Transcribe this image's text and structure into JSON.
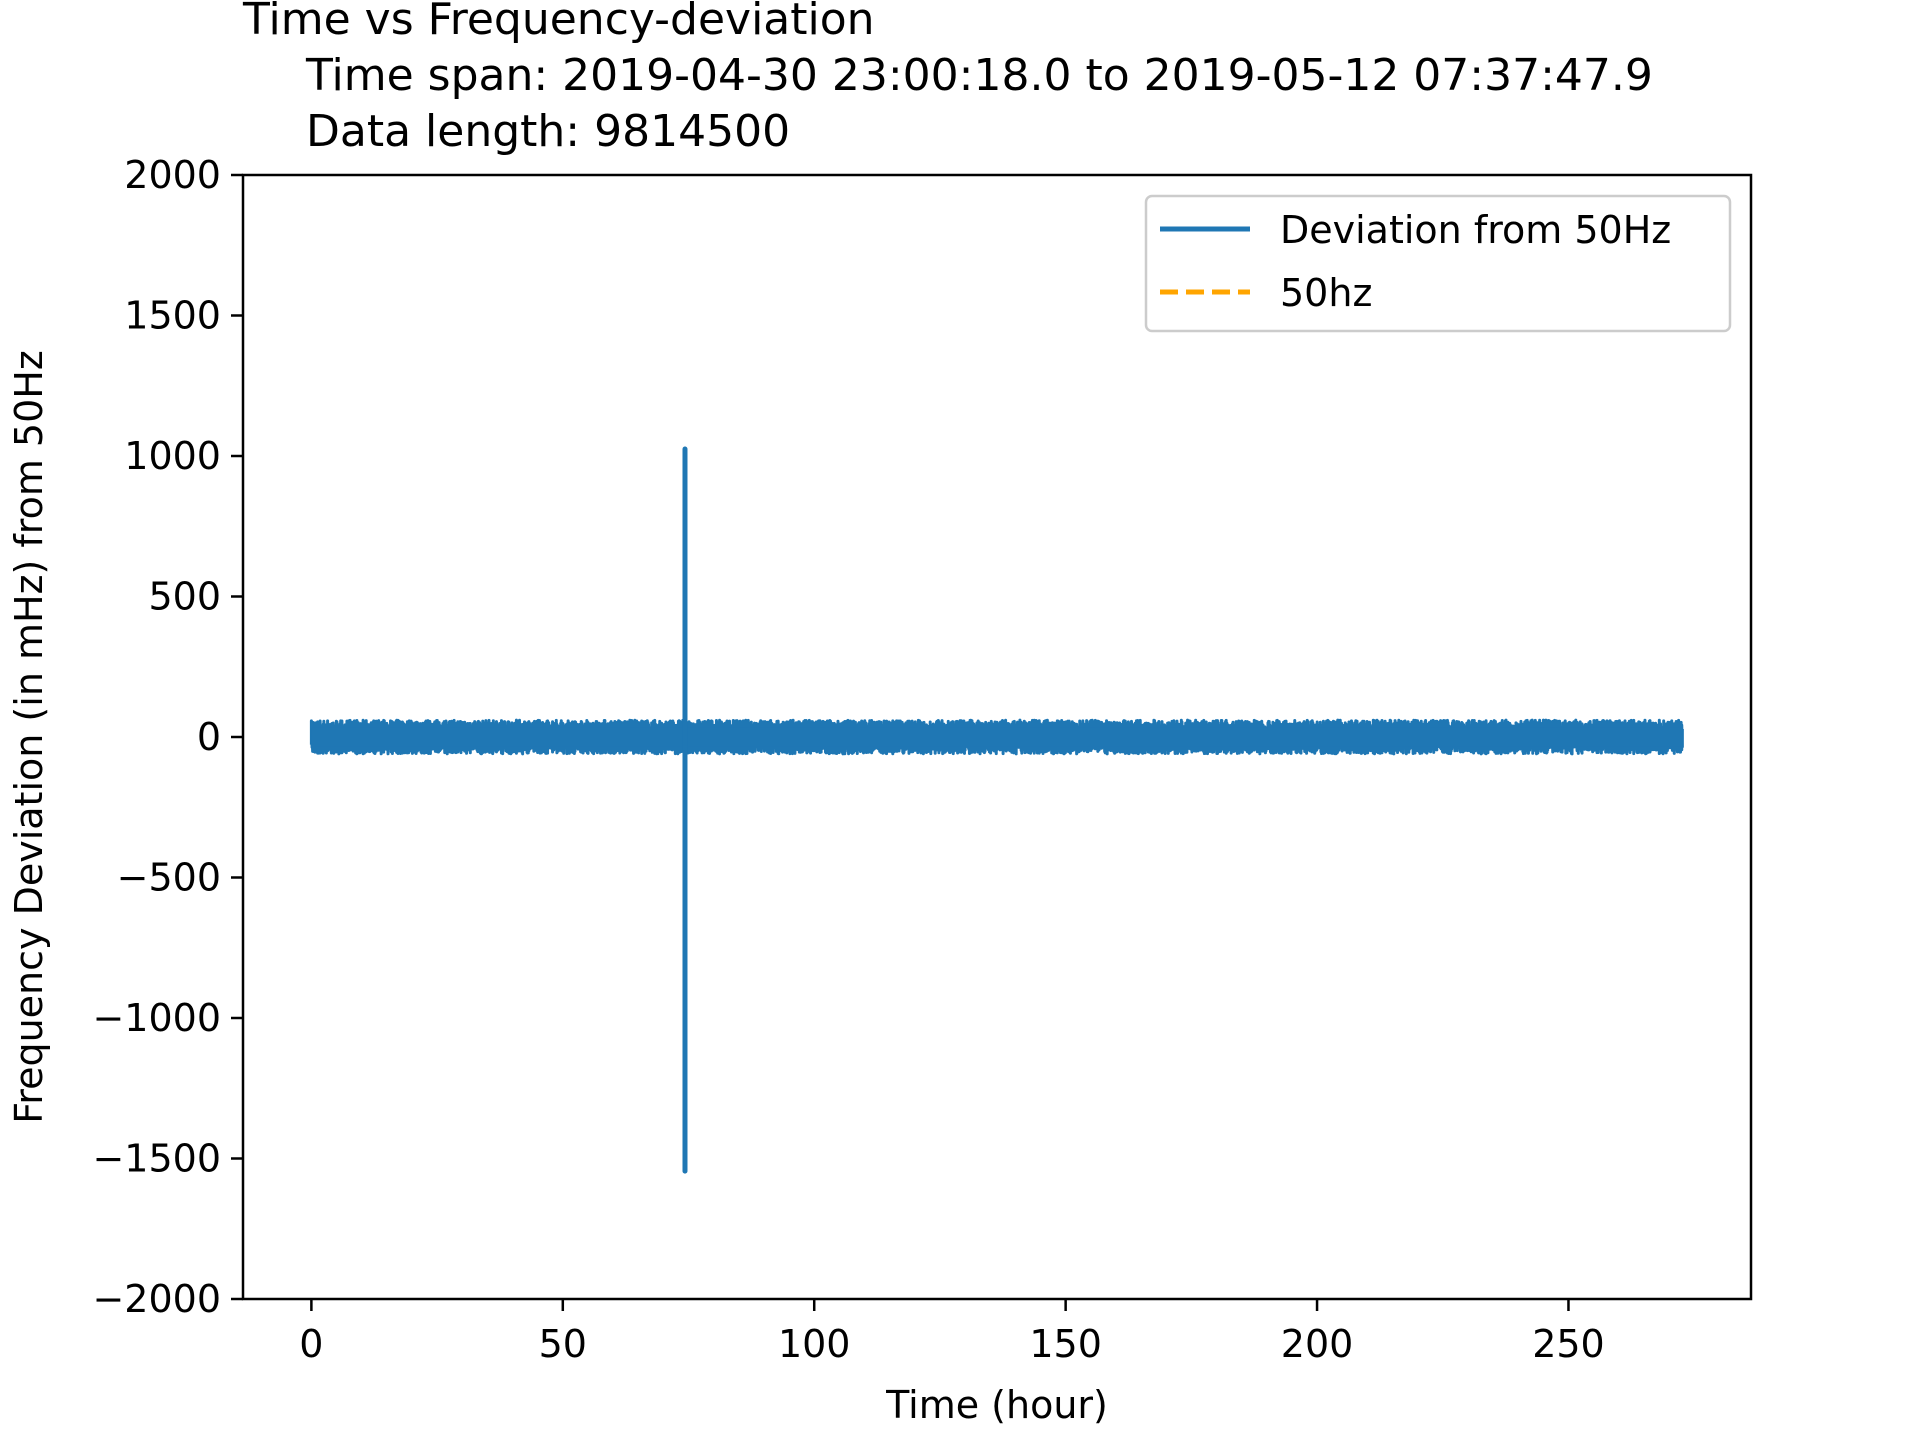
{
  "chart_data": {
    "type": "line",
    "title": "Time vs Frequency-deviation",
    "subtitle_lines": [
      "Time span: 2019-04-30 23:00:18.0 to 2019-05-12 07:37:47.9",
      "Data length: 9814500"
    ],
    "xlabel": "Time (hour)",
    "ylabel": "Frequency Deviation (in mHz) from 50Hz",
    "xlim": [
      -13.6,
      286.3
    ],
    "ylim": [
      -2000,
      2000
    ],
    "x_ticks": [
      0,
      50,
      100,
      150,
      200,
      250
    ],
    "x_tick_labels": [
      "0",
      "50",
      "100",
      "150",
      "200",
      "250"
    ],
    "y_ticks": [
      2000,
      1500,
      1000,
      500,
      0,
      -500,
      -1000,
      -1500,
      -2000
    ],
    "y_tick_labels": [
      "2000",
      "1500",
      "1000",
      "500",
      "0",
      "−500",
      "−1000",
      "−1500",
      "−2000"
    ],
    "grid": false,
    "legend_position": "upper right",
    "series": [
      {
        "name": "Deviation from 50Hz",
        "color": "#1f77b4",
        "style": "solid",
        "x_range": [
          0,
          272.65
        ],
        "typical_band": [
          -60,
          60
        ],
        "spike": {
          "x": 74.3,
          "max": 1025,
          "min": -1545
        }
      },
      {
        "name": "50hz",
        "color": "#ffa500",
        "style": "dashed",
        "values_note": ""
      }
    ]
  }
}
